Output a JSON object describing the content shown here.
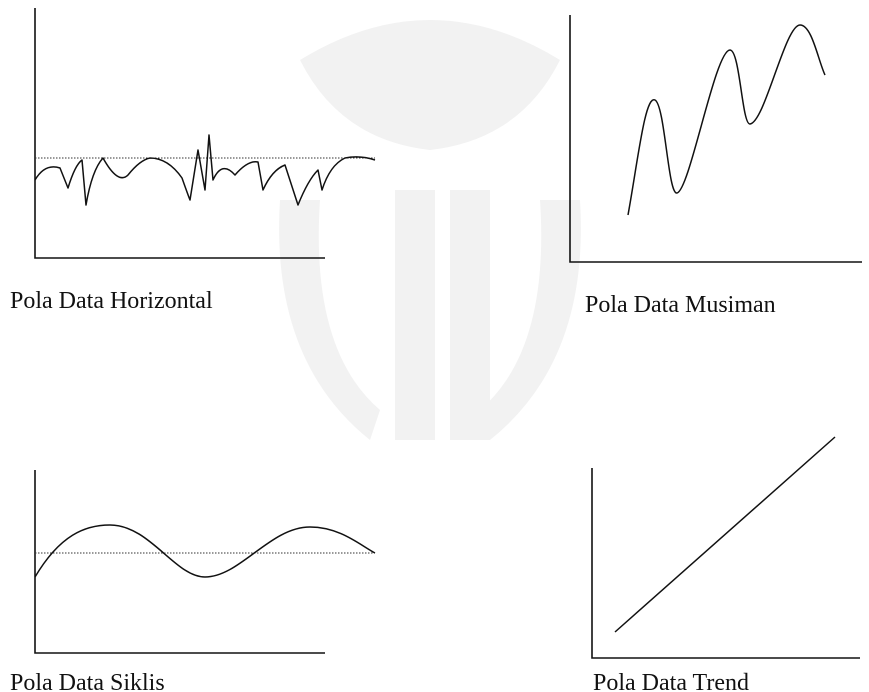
{
  "panels": [
    {
      "label": "Pola Data Horizontal"
    },
    {
      "label": "Pola Data Musiman"
    },
    {
      "label": "Pola Data Siklis"
    },
    {
      "label": "Pola Data Trend"
    }
  ]
}
